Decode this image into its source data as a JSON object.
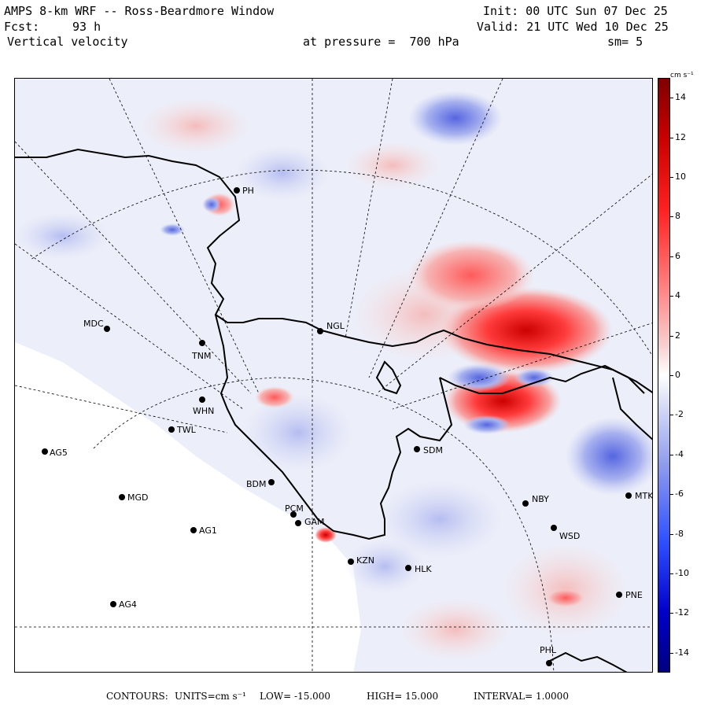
{
  "header": {
    "title": "AMPS 8-km WRF -- Ross-Beardmore Window",
    "init": "Init: 00 UTC Sun 07 Dec 25",
    "fcst_label": "Fcst:",
    "fcst_value": "93 h",
    "valid": "Valid: 21 UTC Wed 10 Dec 25",
    "field": "Vertical velocity",
    "pressure": "at pressure =  700 hPa",
    "smoothing": "sm= 5"
  },
  "stations": [
    {
      "id": "MDC"
    },
    {
      "id": "NGL"
    },
    {
      "id": "TNM"
    },
    {
      "id": "WHN"
    },
    {
      "id": "TWL"
    },
    {
      "id": "AG5"
    },
    {
      "id": "SDM"
    },
    {
      "id": "BDM"
    },
    {
      "id": "MGD"
    },
    {
      "id": "NBY"
    },
    {
      "id": "MTK"
    },
    {
      "id": "AG1"
    },
    {
      "id": "WSD"
    },
    {
      "id": "HLK"
    },
    {
      "id": "AG4"
    },
    {
      "id": "PNE"
    },
    {
      "id": "PHL"
    },
    {
      "id": "PH"
    },
    {
      "id": "PCM"
    },
    {
      "id": "GAM"
    },
    {
      "id": "KZN"
    }
  ],
  "colorbar": {
    "units": "cm s⁻¹",
    "min": -15,
    "max": 15,
    "tick_values": [
      "14",
      "12",
      "10",
      "8",
      "6",
      "4",
      "2",
      "0",
      "-2",
      "-4",
      "-6",
      "-8",
      "-10",
      "-12",
      "-14"
    ],
    "colors_high": "#7f0000",
    "colors_low": "#00007f"
  },
  "footer": {
    "contours_label": "CONTOURS:",
    "units_text": "UNITS=cm s⁻¹",
    "low_text": "LOW= -15.000",
    "high_text": "HIGH= 15.000",
    "interval_text": "INTERVAL= 1.0000"
  }
}
